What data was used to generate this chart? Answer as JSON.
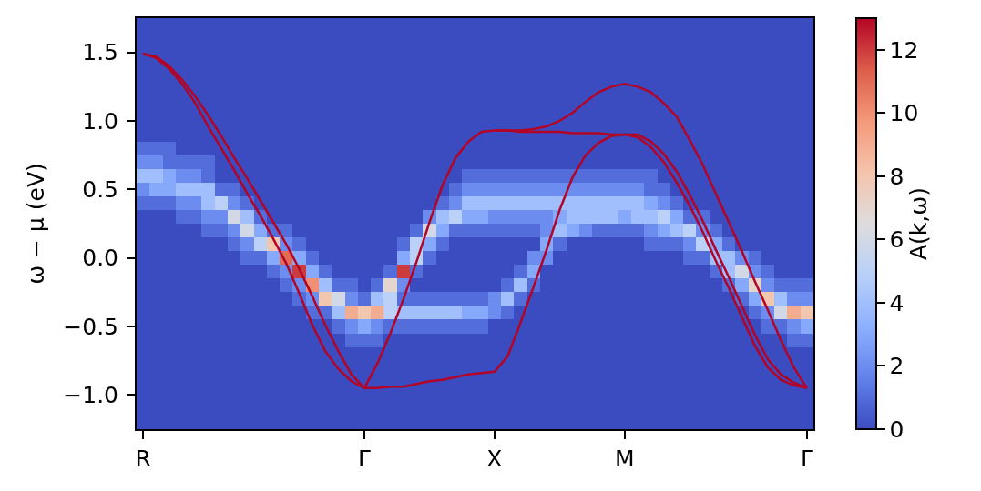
{
  "chart_data": {
    "type": "heatmap",
    "ylabel": "ω − μ (eV)",
    "clabel": "A(k,ω)",
    "categories": [
      "R",
      null,
      null,
      null,
      null,
      null,
      null,
      null,
      null,
      null,
      null,
      null,
      null,
      null,
      null,
      null,
      null,
      "Γ",
      null,
      null,
      null,
      null,
      null,
      null,
      null,
      null,
      null,
      "X",
      null,
      null,
      null,
      null,
      null,
      null,
      null,
      null,
      null,
      "M",
      null,
      null,
      null,
      null,
      null,
      null,
      null,
      null,
      null,
      null,
      null,
      null,
      null,
      "Γ"
    ],
    "ylim": [
      -1.25,
      1.75
    ],
    "yticks": [
      {
        "value": -1.0,
        "label": "−1.0"
      },
      {
        "value": -0.5,
        "label": "−0.5"
      },
      {
        "value": 0.0,
        "label": "0.0"
      },
      {
        "value": 0.5,
        "label": "0.5"
      },
      {
        "value": 1.0,
        "label": "1.0"
      },
      {
        "value": 1.5,
        "label": "1.5"
      }
    ],
    "clim": [
      0,
      13
    ],
    "cticks": [
      0,
      2,
      4,
      6,
      8,
      10,
      12
    ],
    "cells": [
      [
        0,
        0,
        0,
        0,
        0,
        0,
        0,
        0,
        0,
        0,
        0,
        0,
        0,
        0,
        0,
        0,
        0,
        0,
        0,
        0,
        0,
        0,
        0,
        0,
        0,
        0,
        0,
        0,
        0,
        0,
        0,
        0,
        0,
        0,
        0,
        0,
        0,
        0,
        0,
        0,
        0,
        0,
        0,
        0,
        0,
        0,
        0,
        0,
        0,
        0,
        0,
        0
      ],
      [
        0,
        0,
        0,
        0,
        0,
        0,
        0,
        0,
        0,
        0,
        0,
        0,
        0,
        0,
        0,
        0,
        0,
        0,
        0,
        0,
        0,
        0,
        0,
        0,
        0,
        0,
        0,
        0,
        0,
        0,
        0,
        0,
        0,
        0,
        0,
        0,
        0,
        0,
        0,
        0,
        0,
        0,
        0,
        0,
        0,
        0,
        0,
        0,
        0,
        0,
        0,
        0
      ],
      [
        0,
        0,
        0,
        0,
        0,
        0,
        0,
        0,
        0,
        0,
        0,
        0,
        0,
        0,
        0,
        0,
        0,
        0,
        0,
        0,
        0,
        0,
        0,
        0,
        0,
        0,
        0,
        0,
        0,
        0,
        0,
        0,
        0,
        0,
        0,
        0,
        0,
        0,
        0,
        0,
        0,
        0,
        0,
        0,
        0,
        0,
        0,
        0,
        0,
        0,
        0,
        0
      ],
      [
        0,
        0,
        0,
        0,
        0,
        0,
        0,
        0,
        0,
        0,
        0,
        0,
        0,
        0,
        0,
        0,
        0,
        0,
        0,
        0,
        0,
        0,
        0,
        0,
        0,
        0,
        0,
        0,
        0,
        0,
        0,
        0,
        0,
        0,
        0,
        0,
        0,
        0,
        0,
        0,
        0,
        0,
        0,
        0,
        0,
        0,
        0,
        0,
        0,
        0,
        0,
        0
      ],
      [
        0,
        0,
        0,
        0,
        0,
        0,
        0,
        0,
        0,
        0,
        0,
        0,
        0,
        0,
        0,
        0,
        0,
        0,
        0,
        0,
        0,
        0,
        0,
        0,
        0,
        0,
        0,
        0,
        0,
        0,
        0,
        0,
        0,
        0,
        0,
        0,
        0,
        0,
        0,
        0,
        0,
        0,
        0,
        0,
        0,
        0,
        0,
        0,
        0,
        0,
        0,
        0
      ],
      [
        0,
        0,
        0,
        0,
        0,
        0,
        0,
        0,
        0,
        0,
        0,
        0,
        0,
        0,
        0,
        0,
        0,
        0,
        0,
        0,
        0,
        0,
        0,
        0,
        0,
        0,
        0,
        0,
        0,
        0,
        0,
        0,
        0,
        0,
        0,
        0,
        0,
        0,
        0,
        0,
        0,
        0,
        0,
        0,
        0,
        0,
        0,
        0,
        0,
        0,
        0,
        0
      ],
      [
        0,
        0,
        0,
        0,
        0,
        0,
        0,
        0,
        0,
        0,
        0,
        0,
        0,
        0,
        0,
        0,
        0,
        0,
        0,
        0,
        0,
        0,
        0,
        0,
        0,
        0,
        0,
        0,
        0,
        0,
        0,
        0,
        0,
        0,
        0,
        0,
        0,
        0,
        0,
        0,
        0,
        0,
        0,
        0,
        0,
        0,
        0,
        0,
        0,
        0,
        0,
        0
      ],
      [
        0,
        0,
        0,
        0,
        0,
        0,
        0,
        0,
        0,
        0,
        0,
        0,
        0,
        0,
        0,
        0,
        0,
        0,
        0,
        0,
        0,
        0,
        0,
        0,
        0,
        0,
        0,
        0,
        0,
        0,
        0,
        0,
        0,
        0,
        0,
        0,
        0,
        0,
        0,
        0,
        0,
        0,
        0,
        0,
        0,
        0,
        0,
        0,
        0,
        0,
        0,
        0
      ],
      [
        0,
        0,
        0,
        0,
        0,
        0,
        0,
        0,
        0,
        0,
        0,
        0,
        0,
        0,
        0,
        0,
        0,
        0,
        0,
        0,
        0,
        0,
        0,
        0,
        0,
        0,
        0,
        0,
        0,
        0,
        0,
        0,
        0,
        0,
        0,
        0,
        0,
        0,
        0,
        0,
        0,
        0,
        0,
        0,
        0,
        0,
        0,
        0,
        0,
        0,
        0,
        0
      ],
      [
        1,
        1,
        1,
        0,
        0,
        0,
        0,
        0,
        0,
        0,
        0,
        0,
        0,
        0,
        0,
        0,
        0,
        0,
        0,
        0,
        0,
        0,
        0,
        0,
        0,
        0,
        0,
        0,
        0,
        0,
        0,
        0,
        0,
        0,
        0,
        0,
        0,
        0,
        0,
        0,
        0,
        0,
        0,
        0,
        0,
        0,
        0,
        0,
        0,
        0,
        0,
        0
      ],
      [
        2,
        2,
        1,
        1,
        1,
        1,
        0,
        0,
        0,
        0,
        0,
        0,
        0,
        0,
        0,
        0,
        0,
        0,
        0,
        0,
        0,
        0,
        0,
        0,
        0,
        0,
        0,
        0,
        0,
        0,
        0,
        0,
        0,
        0,
        0,
        0,
        0,
        0,
        0,
        0,
        0,
        0,
        0,
        0,
        0,
        0,
        0,
        0,
        0,
        0,
        0,
        0
      ],
      [
        4,
        4,
        3,
        2,
        2,
        1,
        0,
        0,
        0,
        0,
        0,
        0,
        0,
        0,
        0,
        0,
        0,
        0,
        0,
        0,
        0,
        0,
        0,
        0,
        0,
        1,
        1,
        1,
        1,
        1,
        1,
        1,
        1,
        1,
        1,
        1,
        1,
        1,
        1,
        1,
        0,
        0,
        0,
        0,
        0,
        0,
        0,
        0,
        0,
        0,
        0,
        0
      ],
      [
        2,
        3,
        3,
        4,
        4,
        4,
        1,
        1,
        0,
        0,
        0,
        0,
        0,
        0,
        0,
        0,
        0,
        0,
        0,
        0,
        0,
        0,
        0,
        0,
        1,
        2,
        2,
        2,
        2,
        2,
        2,
        2,
        2,
        2,
        2,
        2,
        2,
        2,
        2,
        1,
        1,
        0,
        0,
        0,
        0,
        0,
        0,
        0,
        0,
        0,
        0,
        0
      ],
      [
        1,
        1,
        1,
        2,
        2,
        4,
        5,
        2,
        1,
        0,
        0,
        0,
        0,
        0,
        0,
        0,
        0,
        0,
        0,
        0,
        0,
        0,
        0,
        1,
        2,
        4,
        4,
        4,
        4,
        4,
        4,
        4,
        4,
        4,
        4,
        4,
        4,
        4,
        4,
        3,
        2,
        1,
        0,
        0,
        0,
        0,
        0,
        0,
        0,
        0,
        0,
        0
      ],
      [
        0,
        0,
        0,
        1,
        1,
        2,
        2,
        6,
        4,
        1,
        0,
        0,
        0,
        0,
        0,
        0,
        0,
        0,
        0,
        0,
        0,
        0,
        2,
        4,
        5,
        3,
        3,
        2,
        2,
        2,
        2,
        2,
        3,
        4,
        4,
        4,
        4,
        3,
        4,
        4,
        5,
        3,
        1,
        1,
        0,
        0,
        0,
        0,
        0,
        0,
        0,
        0
      ],
      [
        0,
        0,
        0,
        0,
        0,
        1,
        1,
        2,
        6,
        3,
        1,
        1,
        0,
        0,
        0,
        0,
        0,
        0,
        0,
        0,
        0,
        1,
        6,
        3,
        1,
        1,
        1,
        1,
        1,
        1,
        1,
        2,
        4,
        3,
        2,
        1,
        1,
        1,
        1,
        2,
        3,
        4,
        5,
        2,
        1,
        0,
        0,
        0,
        0,
        0,
        0,
        0
      ],
      [
        0,
        0,
        0,
        0,
        0,
        0,
        0,
        1,
        2,
        5,
        8,
        2,
        1,
        0,
        0,
        0,
        0,
        0,
        0,
        0,
        1,
        5,
        3,
        1,
        0,
        0,
        0,
        0,
        0,
        0,
        0,
        3,
        1,
        0,
        0,
        0,
        0,
        0,
        0,
        1,
        1,
        1,
        2,
        5,
        3,
        1,
        0,
        0,
        0,
        0,
        0,
        0
      ],
      [
        0,
        0,
        0,
        0,
        0,
        0,
        0,
        0,
        1,
        1,
        3,
        11,
        3,
        1,
        0,
        0,
        0,
        0,
        0,
        0,
        3,
        5,
        1,
        0,
        0,
        0,
        0,
        0,
        0,
        0,
        2,
        2,
        0,
        0,
        0,
        0,
        0,
        0,
        0,
        0,
        0,
        0,
        1,
        1,
        4,
        4,
        2,
        1,
        0,
        0,
        0,
        0
      ],
      [
        0,
        0,
        0,
        0,
        0,
        0,
        0,
        0,
        0,
        0,
        1,
        2,
        12,
        3,
        1,
        0,
        0,
        0,
        0,
        1,
        12,
        1,
        0,
        0,
        0,
        0,
        0,
        0,
        0,
        1,
        3,
        0,
        0,
        0,
        0,
        0,
        0,
        0,
        0,
        0,
        0,
        0,
        0,
        0,
        1,
        4,
        6,
        2,
        1,
        0,
        0,
        0
      ],
      [
        0,
        0,
        0,
        0,
        0,
        0,
        0,
        0,
        0,
        0,
        0,
        1,
        2,
        10,
        4,
        1,
        1,
        0,
        1,
        7,
        2,
        0,
        0,
        0,
        0,
        0,
        0,
        0,
        1,
        4,
        1,
        0,
        0,
        0,
        0,
        0,
        0,
        0,
        0,
        0,
        0,
        0,
        0,
        0,
        0,
        1,
        3,
        7,
        2,
        1,
        1,
        1
      ],
      [
        0,
        0,
        0,
        0,
        0,
        0,
        0,
        0,
        0,
        0,
        0,
        0,
        1,
        2,
        8,
        6,
        2,
        1,
        4,
        5,
        1,
        1,
        1,
        1,
        1,
        1,
        1,
        2,
        4,
        1,
        0,
        0,
        0,
        0,
        0,
        0,
        0,
        0,
        0,
        0,
        0,
        0,
        0,
        0,
        0,
        0,
        1,
        3,
        8,
        4,
        2,
        2
      ],
      [
        0,
        0,
        0,
        0,
        0,
        0,
        0,
        0,
        0,
        0,
        0,
        0,
        0,
        1,
        1,
        4,
        9,
        8,
        9,
        5,
        4,
        4,
        4,
        4,
        4,
        3,
        3,
        2,
        1,
        0,
        0,
        0,
        0,
        0,
        0,
        0,
        0,
        0,
        0,
        0,
        0,
        0,
        0,
        0,
        0,
        0,
        0,
        1,
        2,
        6,
        9,
        8
      ],
      [
        0,
        0,
        0,
        0,
        0,
        0,
        0,
        0,
        0,
        0,
        0,
        0,
        0,
        0,
        0,
        1,
        2,
        3,
        2,
        1,
        1,
        1,
        1,
        1,
        1,
        1,
        1,
        0,
        0,
        0,
        0,
        0,
        0,
        0,
        0,
        0,
        0,
        0,
        0,
        0,
        0,
        0,
        0,
        0,
        0,
        0,
        0,
        0,
        1,
        1,
        2,
        3
      ],
      [
        0,
        0,
        0,
        0,
        0,
        0,
        0,
        0,
        0,
        0,
        0,
        0,
        0,
        0,
        0,
        0,
        1,
        1,
        1,
        0,
        0,
        0,
        0,
        0,
        0,
        0,
        0,
        0,
        0,
        0,
        0,
        0,
        0,
        0,
        0,
        0,
        0,
        0,
        0,
        0,
        0,
        0,
        0,
        0,
        0,
        0,
        0,
        0,
        0,
        0,
        1,
        1
      ],
      [
        0,
        0,
        0,
        0,
        0,
        0,
        0,
        0,
        0,
        0,
        0,
        0,
        0,
        0,
        0,
        0,
        0,
        0,
        0,
        0,
        0,
        0,
        0,
        0,
        0,
        0,
        0,
        0,
        0,
        0,
        0,
        0,
        0,
        0,
        0,
        0,
        0,
        0,
        0,
        0,
        0,
        0,
        0,
        0,
        0,
        0,
        0,
        0,
        0,
        0,
        0,
        0
      ],
      [
        0,
        0,
        0,
        0,
        0,
        0,
        0,
        0,
        0,
        0,
        0,
        0,
        0,
        0,
        0,
        0,
        0,
        0,
        0,
        0,
        0,
        0,
        0,
        0,
        0,
        0,
        0,
        0,
        0,
        0,
        0,
        0,
        0,
        0,
        0,
        0,
        0,
        0,
        0,
        0,
        0,
        0,
        0,
        0,
        0,
        0,
        0,
        0,
        0,
        0,
        0,
        0
      ],
      [
        0,
        0,
        0,
        0,
        0,
        0,
        0,
        0,
        0,
        0,
        0,
        0,
        0,
        0,
        0,
        0,
        0,
        0,
        0,
        0,
        0,
        0,
        0,
        0,
        0,
        0,
        0,
        0,
        0,
        0,
        0,
        0,
        0,
        0,
        0,
        0,
        0,
        0,
        0,
        0,
        0,
        0,
        0,
        0,
        0,
        0,
        0,
        0,
        0,
        0,
        0,
        0
      ],
      [
        0,
        0,
        0,
        0,
        0,
        0,
        0,
        0,
        0,
        0,
        0,
        0,
        0,
        0,
        0,
        0,
        0,
        0,
        0,
        0,
        0,
        0,
        0,
        0,
        0,
        0,
        0,
        0,
        0,
        0,
        0,
        0,
        0,
        0,
        0,
        0,
        0,
        0,
        0,
        0,
        0,
        0,
        0,
        0,
        0,
        0,
        0,
        0,
        0,
        0,
        0,
        0
      ],
      [
        0,
        0,
        0,
        0,
        0,
        0,
        0,
        0,
        0,
        0,
        0,
        0,
        0,
        0,
        0,
        0,
        0,
        0,
        0,
        0,
        0,
        0,
        0,
        0,
        0,
        0,
        0,
        0,
        0,
        0,
        0,
        0,
        0,
        0,
        0,
        0,
        0,
        0,
        0,
        0,
        0,
        0,
        0,
        0,
        0,
        0,
        0,
        0,
        0,
        0,
        0,
        0
      ],
      [
        0,
        0,
        0,
        0,
        0,
        0,
        0,
        0,
        0,
        0,
        0,
        0,
        0,
        0,
        0,
        0,
        0,
        0,
        0,
        0,
        0,
        0,
        0,
        0,
        0,
        0,
        0,
        0,
        0,
        0,
        0,
        0,
        0,
        0,
        0,
        0,
        0,
        0,
        0,
        0,
        0,
        0,
        0,
        0,
        0,
        0,
        0,
        0,
        0,
        0,
        0,
        0
      ]
    ],
    "series": [
      {
        "type": "line",
        "color": "#b40426",
        "values": [
          1.49,
          1.46,
          1.38,
          1.27,
          1.13,
          0.96,
          0.8,
          0.64,
          0.47,
          0.31,
          0.14,
          -0.04,
          -0.26,
          -0.49,
          -0.68,
          -0.81,
          -0.9,
          -0.95,
          -0.77,
          -0.55,
          -0.3,
          -0.03,
          0.26,
          0.53,
          0.73,
          0.85,
          0.92,
          0.93,
          0.93,
          0.93,
          0.94,
          0.96,
          1.0,
          1.06,
          1.14,
          1.21,
          1.25,
          1.27,
          1.25,
          1.21,
          1.13,
          1.03,
          0.86,
          0.68,
          0.47,
          0.26,
          0.05,
          -0.17,
          -0.38,
          -0.6,
          -0.8,
          -0.95
        ]
      },
      {
        "type": "line",
        "color": "#b40426",
        "values": [
          1.49,
          1.47,
          1.4,
          1.3,
          1.18,
          1.04,
          0.89,
          0.73,
          0.58,
          0.42,
          0.26,
          0.1,
          -0.08,
          -0.28,
          -0.49,
          -0.68,
          -0.85,
          -0.95,
          -0.95,
          -0.94,
          -0.94,
          -0.92,
          -0.9,
          -0.89,
          -0.87,
          -0.85,
          -0.84,
          -0.83,
          -0.72,
          -0.47,
          -0.21,
          0.06,
          0.35,
          0.59,
          0.75,
          0.84,
          0.89,
          0.9,
          0.9,
          0.85,
          0.76,
          0.63,
          0.46,
          0.27,
          0.06,
          -0.14,
          -0.35,
          -0.56,
          -0.74,
          -0.85,
          -0.91,
          -0.95
        ]
      },
      {
        "type": "line",
        "color": "#b40426",
        "values": [
          null,
          null,
          null,
          null,
          null,
          null,
          null,
          null,
          null,
          null,
          null,
          null,
          null,
          null,
          null,
          null,
          null,
          null,
          null,
          null,
          null,
          null,
          null,
          null,
          null,
          null,
          null,
          0.93,
          0.93,
          0.92,
          0.92,
          0.92,
          0.92,
          0.91,
          0.91,
          0.91,
          0.9,
          0.9,
          0.88,
          0.81,
          0.7,
          0.55,
          0.38,
          0.19,
          -0.02,
          -0.22,
          -0.43,
          -0.64,
          -0.8,
          -0.89,
          -0.93,
          -0.95
        ]
      }
    ]
  }
}
